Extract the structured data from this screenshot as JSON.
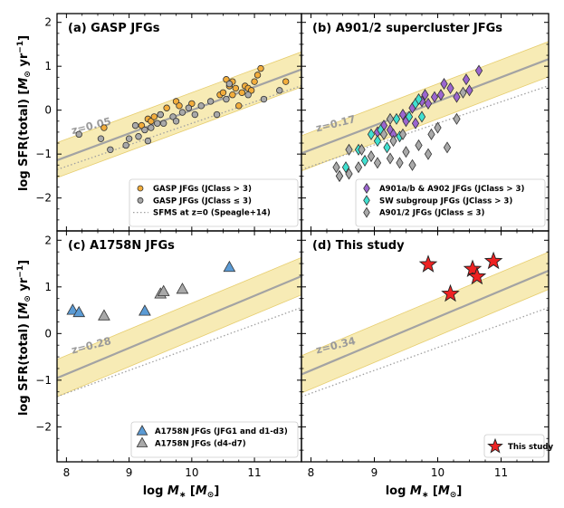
{
  "figure": {
    "ylabel": "log SFR(total) [M_⊙ yr⁻¹]",
    "xlabel": "log M_* [M_⊙]",
    "ylabel_parts": {
      "main": "log SFR(total) [",
      "M": "M",
      "sun": "⊙",
      "yr": " yr",
      "exp": "−1",
      "close": "]"
    },
    "xlabel_parts": {
      "main": "log ",
      "M": "M",
      "star": "∗",
      "open": " [",
      "M2": "M",
      "sun": "⊙",
      "close": "]"
    }
  },
  "chart_data": [
    {
      "type": "scatter",
      "panel": "a",
      "title": "(a) GASP JFGs",
      "xlim": [
        7.85,
        11.75
      ],
      "ylim": [
        -2.75,
        2.2
      ],
      "xticks": [
        8,
        9,
        10,
        11
      ],
      "yticks": [
        -2,
        -1,
        0,
        1,
        2
      ],
      "sfms_z_label": "z=0.05",
      "sfms_z": {
        "slope": 0.53,
        "intercept": -5.3,
        "band": 0.4
      },
      "sfms_z0": {
        "slope": 0.49,
        "intercept": -5.2
      },
      "series": [
        {
          "name": "GASP JFGs (JClass > 3)",
          "marker": "circle",
          "color": "#f2ad3c",
          "x": [
            8.6,
            9.2,
            9.3,
            9.35,
            9.4,
            9.5,
            9.6,
            9.75,
            9.8,
            10.0,
            10.45,
            10.5,
            10.55,
            10.6,
            10.65,
            10.7,
            10.75,
            10.8,
            10.85,
            10.9,
            11.0,
            11.05,
            11.1,
            11.5,
            10.95,
            10.65
          ],
          "y": [
            -0.4,
            -0.35,
            -0.2,
            -0.25,
            -0.15,
            -0.1,
            0.05,
            0.2,
            0.1,
            0.15,
            0.35,
            0.4,
            0.7,
            0.55,
            0.35,
            0.5,
            0.1,
            0.4,
            0.55,
            0.5,
            0.65,
            0.8,
            0.95,
            0.65,
            0.45,
            0.65
          ]
        },
        {
          "name": "GASP JFGs (JClass ≤ 3)",
          "marker": "circle",
          "color": "#a9a9a9",
          "x": [
            8.2,
            8.55,
            8.7,
            8.95,
            9.0,
            9.1,
            9.25,
            9.3,
            9.35,
            9.45,
            9.5,
            9.55,
            9.7,
            9.85,
            9.95,
            10.05,
            10.15,
            10.3,
            10.4,
            10.55,
            10.6,
            10.9,
            11.15,
            11.4,
            9.15,
            9.75
          ],
          "y": [
            -0.55,
            -0.65,
            -0.9,
            -0.8,
            -0.65,
            -0.35,
            -0.45,
            -0.7,
            -0.4,
            -0.3,
            -0.1,
            -0.3,
            -0.15,
            -0.05,
            0.05,
            -0.1,
            0.1,
            0.2,
            -0.1,
            0.25,
            0.6,
            0.35,
            0.25,
            0.45,
            -0.6,
            -0.25
          ]
        }
      ],
      "legend": {
        "loc": "lower right",
        "entries": [
          "GASP JFGs (JClass > 3)",
          "GASP JFGs (JClass ≤ 3)",
          "SFMS at z=0 (Speagle+14)"
        ]
      }
    },
    {
      "type": "scatter",
      "panel": "b",
      "title": "(b) A901/2 supercluster JFGs",
      "xlim": [
        7.85,
        11.75
      ],
      "ylim": [
        -2.75,
        2.2
      ],
      "xticks": [
        8,
        9,
        10,
        11
      ],
      "yticks": [
        -2,
        -1,
        0,
        1,
        2
      ],
      "sfms_z_label": "z=0.17",
      "sfms_z": {
        "slope": 0.55,
        "intercept": -5.3,
        "band": 0.4
      },
      "sfms_z0": {
        "slope": 0.49,
        "intercept": -5.2
      },
      "series": [
        {
          "name": "A901a/b & A902 JFGs (JClass > 3)",
          "marker": "diamond",
          "color": "#9b65cf",
          "x": [
            9.05,
            9.15,
            9.25,
            9.3,
            9.45,
            9.5,
            9.6,
            9.65,
            9.75,
            9.8,
            9.85,
            9.95,
            10.05,
            10.1,
            10.2,
            10.3,
            10.45,
            10.5,
            10.65
          ],
          "y": [
            -0.5,
            -0.35,
            -0.45,
            -0.55,
            -0.1,
            -0.25,
            0.05,
            -0.3,
            0.2,
            0.35,
            0.15,
            0.3,
            0.35,
            0.6,
            0.5,
            0.3,
            0.7,
            0.45,
            0.9
          ]
        },
        {
          "name": "SW subgroup JFGs (JClass > 3)",
          "marker": "diamond",
          "color": "#40e0d0",
          "x": [
            8.45,
            8.55,
            8.75,
            8.85,
            8.95,
            9.05,
            9.1,
            9.2,
            9.35,
            9.4,
            9.55,
            9.65,
            9.7,
            9.75
          ],
          "y": [
            -1.5,
            -1.3,
            -0.9,
            -1.15,
            -0.55,
            -0.7,
            -0.45,
            -0.85,
            -0.2,
            -0.6,
            -0.15,
            0.15,
            0.25,
            -0.15
          ]
        },
        {
          "name": "A901/2 JFGs (JClass ≤ 3)",
          "marker": "diamond",
          "color": "#a9a9a9",
          "x": [
            8.4,
            8.45,
            8.6,
            8.75,
            8.8,
            8.95,
            9.05,
            9.15,
            9.25,
            9.3,
            9.4,
            9.5,
            9.6,
            9.7,
            9.85,
            9.9,
            10.0,
            10.15,
            10.3,
            10.4,
            8.6,
            9.25,
            9.45
          ],
          "y": [
            -1.3,
            -1.5,
            -1.45,
            -1.3,
            -0.9,
            -1.05,
            -1.2,
            -0.55,
            -1.1,
            -0.7,
            -1.2,
            -0.95,
            -1.25,
            -0.8,
            -1.0,
            -0.55,
            -0.4,
            -0.85,
            -0.2,
            0.4,
            -0.9,
            -0.2,
            -0.55
          ]
        }
      ],
      "legend": {
        "loc": "lower right",
        "entries": [
          "A901a/b & A902 JFGs (JClass > 3)",
          "SW subgroup JFGs (JClass > 3)",
          "A901/2 JFGs (JClass ≤ 3)"
        ]
      }
    },
    {
      "type": "scatter",
      "panel": "c",
      "title": "(c) A1758N JFGs",
      "xlim": [
        7.85,
        11.75
      ],
      "ylim": [
        -2.75,
        2.2
      ],
      "xticks": [
        8,
        9,
        10,
        11
      ],
      "yticks": [
        -2,
        -1,
        0,
        1,
        2
      ],
      "sfms_z_label": "z=0.28",
      "sfms_z": {
        "slope": 0.56,
        "intercept": -5.35,
        "band": 0.4
      },
      "sfms_z0": {
        "slope": 0.49,
        "intercept": -5.2
      },
      "series": [
        {
          "name": "A1758N JFGs (JFG1 and d1-d3)",
          "marker": "triangle",
          "color": "#5b9bd5",
          "x": [
            8.1,
            8.2,
            9.25,
            10.6
          ],
          "y": [
            0.5,
            0.45,
            0.48,
            1.42
          ]
        },
        {
          "name": "A1758N JFGs (d4-d7)",
          "marker": "triangle",
          "color": "#a9a9a9",
          "x": [
            8.6,
            9.5,
            9.55,
            9.85
          ],
          "y": [
            0.38,
            0.85,
            0.9,
            0.95
          ]
        }
      ],
      "legend": {
        "loc": "lower right",
        "entries": [
          "A1758N JFGs (JFG1 and d1-d3)",
          "A1758N JFGs (d4-d7)"
        ]
      }
    },
    {
      "type": "scatter",
      "panel": "d",
      "title": "(d) This study",
      "xlim": [
        7.85,
        11.75
      ],
      "ylim": [
        -2.75,
        2.2
      ],
      "xticks": [
        8,
        9,
        10,
        11
      ],
      "yticks": [
        -2,
        -1,
        0,
        1,
        2
      ],
      "sfms_z_label": "z=0.34",
      "sfms_z": {
        "slope": 0.57,
        "intercept": -5.35,
        "band": 0.4
      },
      "sfms_z0": {
        "slope": 0.49,
        "intercept": -5.2
      },
      "series": [
        {
          "name": "This study",
          "marker": "star",
          "color": "#ee2222",
          "x": [
            9.85,
            10.2,
            10.55,
            10.62,
            10.88
          ],
          "y": [
            1.48,
            0.85,
            1.38,
            1.22,
            1.55
          ]
        }
      ],
      "legend": {
        "loc": "lower right",
        "entries": [
          "This study"
        ]
      }
    }
  ]
}
